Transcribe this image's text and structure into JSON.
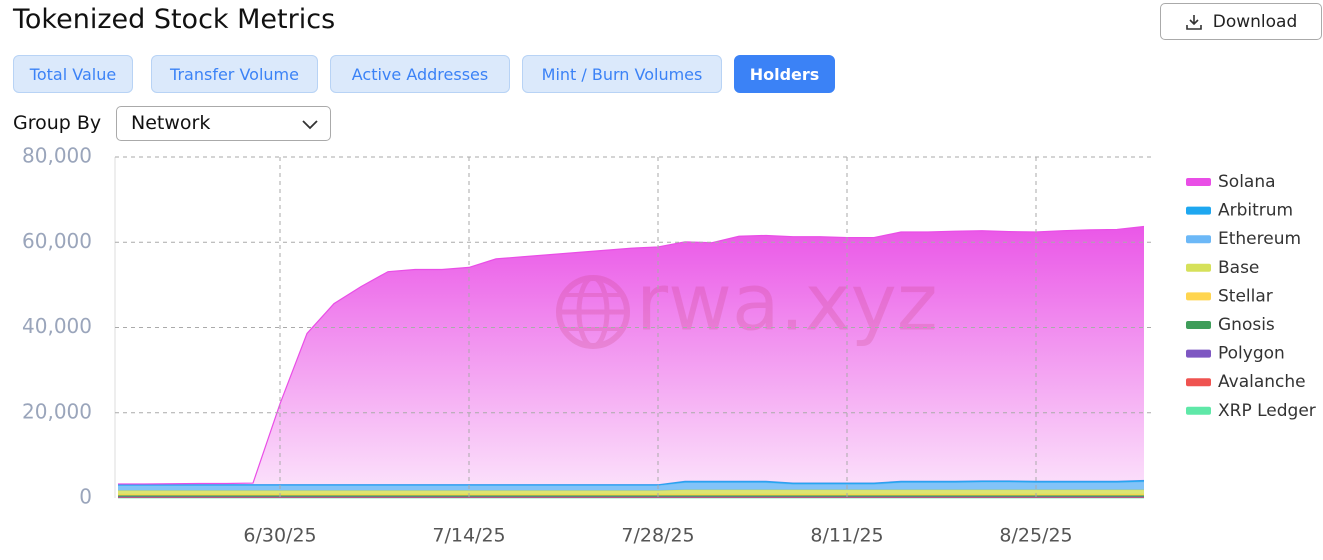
{
  "header": {
    "title": "Tokenized Stock Metrics",
    "download": "Download"
  },
  "tabs": [
    "Total Value",
    "Transfer Volume",
    "Active Addresses",
    "Mint / Burn Volumes",
    "Holders"
  ],
  "group_by": {
    "label": "Group By",
    "value": "Network"
  },
  "watermark": "rwa.xyz",
  "chart_data": {
    "type": "stacked-area",
    "x": [
      "6/18/25",
      "6/20/25",
      "6/22/25",
      "6/24/25",
      "6/26/25",
      "6/28/25",
      "6/30/25",
      "7/2/25",
      "7/4/25",
      "7/6/25",
      "7/8/25",
      "7/10/25",
      "7/12/25",
      "7/14/25",
      "7/16/25",
      "7/18/25",
      "7/20/25",
      "7/22/25",
      "7/24/25",
      "7/26/25",
      "7/28/25",
      "7/30/25",
      "8/1/25",
      "8/3/25",
      "8/5/25",
      "8/7/25",
      "8/9/25",
      "8/11/25",
      "8/13/25",
      "8/15/25",
      "8/17/25",
      "8/19/25",
      "8/21/25",
      "8/23/25",
      "8/25/25",
      "8/27/25",
      "8/29/25",
      "8/31/25",
      "9/2/25"
    ],
    "xticks": [
      "6/30/25",
      "7/14/25",
      "7/28/25",
      "8/11/25",
      "8/25/25"
    ],
    "ylim": [
      0,
      80000
    ],
    "yticks": [
      0,
      {
        "value": 20000,
        "label": "20,000"
      },
      {
        "value": 40000,
        "label": "40,000"
      },
      {
        "value": 60000,
        "label": "60,000"
      },
      {
        "value": 80000,
        "label": "80,000"
      }
    ],
    "grid": true,
    "legend": "right",
    "series": [
      {
        "name": "Solana",
        "color": "#e94ee6",
        "values": [
          200,
          200,
          250,
          300,
          300,
          400,
          19000,
          35500,
          42500,
          46500,
          50000,
          50500,
          50500,
          51000,
          53000,
          53500,
          54000,
          54500,
          55000,
          55500,
          55800,
          56200,
          56000,
          57500,
          57700,
          57800,
          57800,
          57600,
          57600,
          58500,
          58500,
          58700,
          58700,
          58500,
          58500,
          58800,
          59000,
          59100,
          59600
        ]
      },
      {
        "name": "Arbitrum",
        "color": "#1ea7f0",
        "values": [
          150,
          150,
          150,
          150,
          150,
          150,
          150,
          150,
          150,
          150,
          150,
          150,
          150,
          150,
          150,
          150,
          150,
          150,
          150,
          150,
          150,
          250,
          250,
          250,
          250,
          250,
          250,
          250,
          250,
          250,
          250,
          250,
          250,
          250,
          250,
          250,
          250,
          250,
          250
        ]
      },
      {
        "name": "Ethereum",
        "color": "#6cb8f7",
        "values": [
          1200,
          1200,
          1200,
          1200,
          1200,
          1200,
          1200,
          1200,
          1200,
          1200,
          1200,
          1200,
          1200,
          1200,
          1200,
          1200,
          1200,
          1200,
          1200,
          1200,
          1200,
          1700,
          1700,
          1700,
          1700,
          1300,
          1300,
          1300,
          1300,
          1700,
          1700,
          1700,
          1800,
          1800,
          1700,
          1700,
          1700,
          1700,
          1900
        ]
      },
      {
        "name": "Base",
        "color": "#d6e15a",
        "values": [
          900,
          900,
          900,
          900,
          900,
          900,
          900,
          900,
          900,
          900,
          900,
          900,
          900,
          900,
          900,
          900,
          900,
          900,
          900,
          900,
          900,
          1100,
          1100,
          1100,
          1100,
          1100,
          1100,
          1100,
          1100,
          1100,
          1100,
          1100,
          1100,
          1100,
          1100,
          1100,
          1100,
          1100,
          1100
        ]
      },
      {
        "name": "Stellar",
        "color": "#ffd54f",
        "values": [
          250,
          250,
          250,
          250,
          250,
          250,
          250,
          250,
          250,
          250,
          250,
          250,
          250,
          250,
          250,
          250,
          250,
          250,
          250,
          250,
          250,
          250,
          250,
          250,
          250,
          250,
          250,
          250,
          250,
          250,
          250,
          250,
          250,
          250,
          250,
          250,
          250,
          250,
          250
        ]
      },
      {
        "name": "Gnosis",
        "color": "#3f9d5a",
        "values": [
          300,
          300,
          300,
          300,
          300,
          300,
          300,
          300,
          300,
          300,
          300,
          300,
          300,
          300,
          300,
          300,
          300,
          300,
          300,
          300,
          300,
          300,
          300,
          300,
          300,
          300,
          300,
          300,
          300,
          300,
          300,
          300,
          300,
          300,
          300,
          300,
          300,
          300,
          300
        ]
      },
      {
        "name": "Polygon",
        "color": "#7e57c2",
        "values": [
          150,
          150,
          150,
          150,
          150,
          150,
          150,
          150,
          150,
          150,
          150,
          150,
          150,
          150,
          150,
          150,
          150,
          150,
          150,
          150,
          150,
          150,
          150,
          150,
          150,
          150,
          150,
          150,
          150,
          150,
          150,
          150,
          150,
          150,
          150,
          150,
          150,
          150,
          150
        ]
      },
      {
        "name": "Avalanche",
        "color": "#ef5350",
        "values": [
          100,
          100,
          100,
          100,
          100,
          100,
          100,
          100,
          100,
          100,
          100,
          100,
          100,
          100,
          100,
          100,
          100,
          100,
          100,
          100,
          100,
          100,
          100,
          100,
          100,
          100,
          100,
          100,
          100,
          100,
          100,
          100,
          100,
          100,
          100,
          100,
          100,
          100,
          100
        ]
      },
      {
        "name": "XRP Ledger",
        "color": "#5fe8a8",
        "values": [
          50,
          50,
          50,
          50,
          50,
          50,
          50,
          50,
          50,
          50,
          50,
          50,
          50,
          50,
          50,
          50,
          50,
          50,
          50,
          50,
          50,
          50,
          50,
          50,
          50,
          50,
          50,
          50,
          50,
          50,
          50,
          50,
          50,
          50,
          50,
          50,
          50,
          50,
          50
        ]
      }
    ]
  }
}
